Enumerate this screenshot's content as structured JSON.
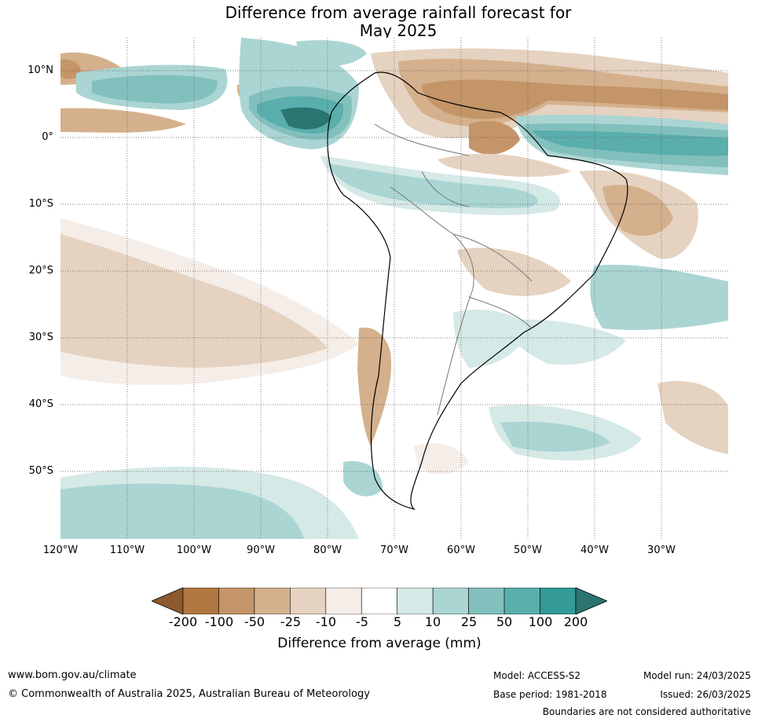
{
  "title": {
    "line1": "Difference from average rainfall forecast for",
    "line2": "May 2025"
  },
  "axes": {
    "latitude_labels": [
      "10°N",
      "0°",
      "10°S",
      "20°S",
      "30°S",
      "40°S",
      "50°S"
    ],
    "longitude_labels": [
      "120°W",
      "110°W",
      "100°W",
      "90°W",
      "80°W",
      "70°W",
      "60°W",
      "50°W",
      "40°W",
      "30°W"
    ]
  },
  "legend": {
    "label": "Difference from average (mm)",
    "ticks": [
      "-200",
      "-100",
      "-50",
      "-25",
      "-10",
      "-5",
      "5",
      "10",
      "25",
      "50",
      "100",
      "200"
    ],
    "colors": [
      "#8c5a2e",
      "#b07840",
      "#c49568",
      "#d4b08c",
      "#e5d2c0",
      "#f5ede8",
      "#ffffff",
      "#d5e9e7",
      "#aad5d3",
      "#82c0bd",
      "#5aaeab",
      "#339a96",
      "#2a7570"
    ]
  },
  "footer": {
    "website": "www.bom.gov.au/climate",
    "copyright": "© Commonwealth of Australia 2025, Australian Bureau of Meteorology",
    "model": "Model: ACCESS-S2",
    "base_period": "Base period: 1981-2018",
    "model_run": "Model run: 24/03/2025",
    "issued": "Issued: 26/03/2025",
    "disclaimer": "Boundaries are not considered authoritative"
  }
}
